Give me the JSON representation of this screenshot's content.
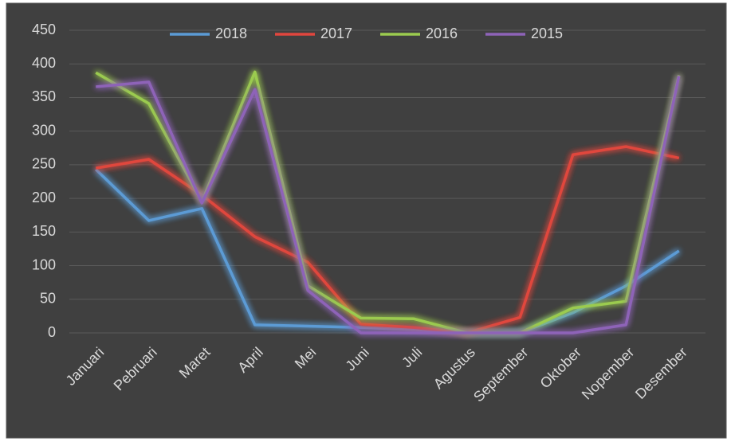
{
  "chart_data": {
    "type": "line",
    "categories": [
      "Januari",
      "Pebruari",
      "Maret",
      "April",
      "Mei",
      "Juni",
      "Juli",
      "Agustus",
      "September",
      "Oktober",
      "Nopember",
      "Desember"
    ],
    "series": [
      {
        "name": "2018",
        "color": "#5b9bd5",
        "values": [
          243,
          167,
          185,
          12,
          10,
          8,
          5,
          0,
          0,
          30,
          70,
          122
        ]
      },
      {
        "name": "2017",
        "color": "#e0463e",
        "values": [
          245,
          258,
          205,
          143,
          105,
          13,
          8,
          0,
          23,
          265,
          277,
          260
        ]
      },
      {
        "name": "2016",
        "color": "#9bcb4f",
        "values": [
          387,
          341,
          195,
          388,
          70,
          22,
          21,
          0,
          0,
          37,
          47,
          383
        ]
      },
      {
        "name": "2015",
        "color": "#8e63b8",
        "values": [
          366,
          373,
          193,
          362,
          63,
          0,
          0,
          0,
          0,
          0,
          12,
          382
        ]
      }
    ],
    "ylim": [
      0,
      450
    ],
    "yticks": [
      0,
      50,
      100,
      150,
      200,
      250,
      300,
      350,
      400,
      450
    ],
    "grid": true,
    "legend": "top"
  }
}
